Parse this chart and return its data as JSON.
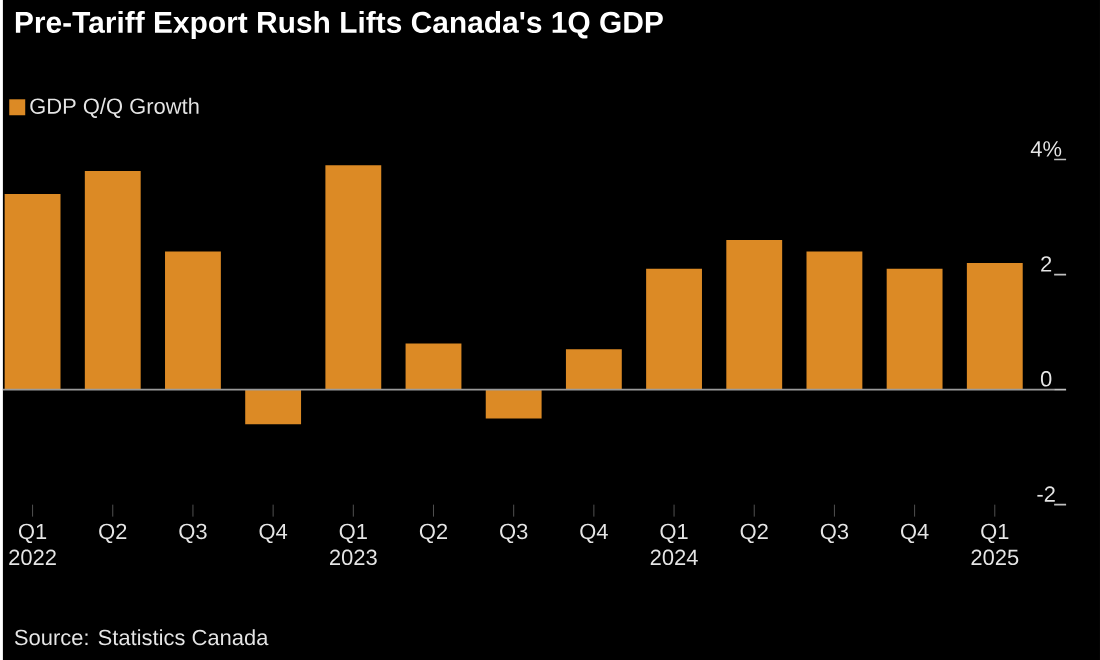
{
  "chart_data": {
    "type": "bar",
    "title": "Pre-Tariff Export Rush Lifts Canada's 1Q GDP",
    "categories": [
      "Q1 2022",
      "Q2",
      "Q3",
      "Q4",
      "Q1 2023",
      "Q2",
      "Q3",
      "Q4",
      "Q1 2024",
      "Q2",
      "Q3",
      "Q4",
      "Q1 2025"
    ],
    "series": [
      {
        "name": "GDP Q/Q Growth",
        "color": "#dc8a25",
        "values": [
          3.4,
          3.8,
          2.4,
          -0.6,
          3.9,
          0.8,
          -0.5,
          0.7,
          2.1,
          2.6,
          2.4,
          2.1,
          2.2
        ]
      }
    ],
    "ylim": [
      -2,
      4
    ],
    "yticks": [
      -2,
      0,
      2,
      {
        "value": 4,
        "label": "4%"
      }
    ],
    "ref_lines": [
      {
        "axis": "y",
        "value": 0,
        "color": "#9a9a9a"
      }
    ],
    "legend": "top left",
    "grid": false,
    "annotations": [
      "Source: Statistics Canada"
    ]
  }
}
